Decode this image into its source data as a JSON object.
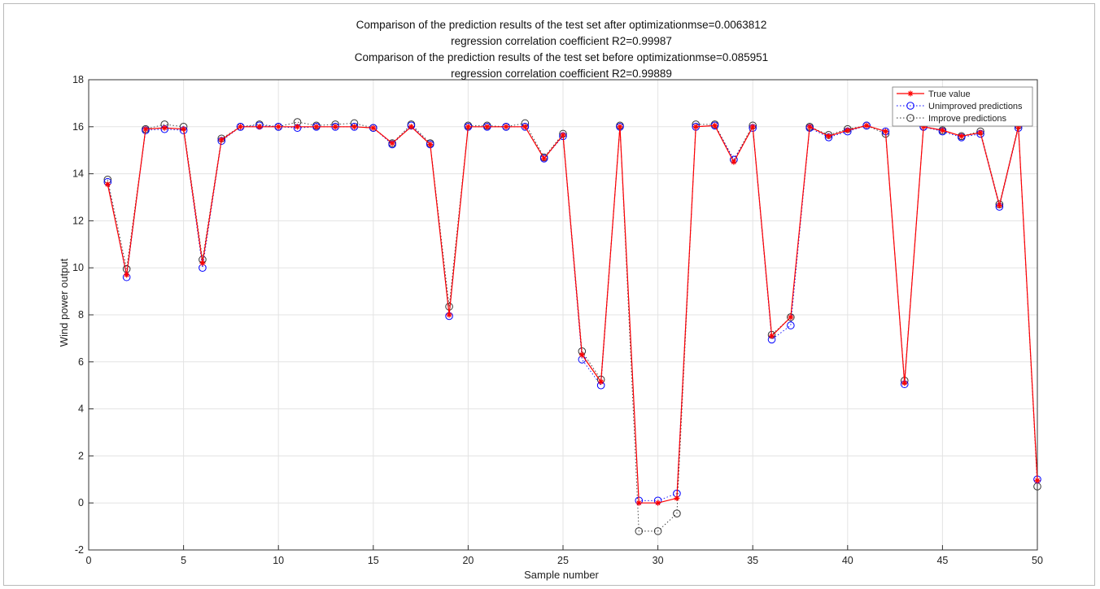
{
  "chart_data": {
    "type": "line",
    "title_lines": [
      "Comparison of the prediction results of the test set after optimizationmse=0.0063812",
      "regression correlation coefficient R2=0.99987",
      "Comparison of the prediction results of the test set before optimizationmse=0.085951",
      "regression correlation coefficient R2=0.99889"
    ],
    "xlabel": "Sample number",
    "ylabel": "Wind power output",
    "xlim": [
      0,
      50
    ],
    "ylim": [
      -2,
      18
    ],
    "xticks": [
      0,
      5,
      10,
      15,
      20,
      25,
      30,
      35,
      40,
      45,
      50
    ],
    "yticks": [
      -2,
      0,
      2,
      4,
      6,
      8,
      10,
      12,
      14,
      16,
      18
    ],
    "grid": true,
    "legend_position": "top-right",
    "x": [
      1,
      2,
      3,
      4,
      5,
      6,
      7,
      8,
      9,
      10,
      11,
      12,
      13,
      14,
      15,
      16,
      17,
      18,
      19,
      20,
      21,
      22,
      23,
      24,
      25,
      26,
      27,
      28,
      29,
      30,
      31,
      32,
      33,
      34,
      35,
      36,
      37,
      38,
      39,
      40,
      41,
      42,
      43,
      44,
      45,
      46,
      47,
      48,
      49,
      50
    ],
    "series": [
      {
        "name": "True value",
        "color": "#ff0000",
        "marker": "star",
        "line": "solid",
        "values": [
          13.55,
          9.7,
          15.9,
          15.95,
          15.9,
          10.2,
          15.45,
          16.0,
          16.0,
          16.0,
          16.0,
          16.0,
          16.0,
          16.0,
          15.95,
          15.3,
          16.0,
          15.25,
          8.0,
          16.0,
          16.0,
          16.0,
          16.0,
          14.65,
          15.65,
          6.3,
          5.15,
          16.0,
          0.0,
          0.0,
          0.2,
          16.0,
          16.05,
          14.5,
          16.0,
          7.1,
          7.9,
          16.0,
          15.6,
          15.85,
          16.05,
          15.8,
          5.1,
          16.0,
          15.85,
          15.6,
          15.75,
          12.65,
          16.0,
          0.95
        ]
      },
      {
        "name": "Unimproved predictions",
        "color": "#0000ff",
        "marker": "circle",
        "line": "dotted",
        "values": [
          13.65,
          9.6,
          15.85,
          15.9,
          15.85,
          10.0,
          15.4,
          16.0,
          16.05,
          16.0,
          15.95,
          16.0,
          16.0,
          16.0,
          15.95,
          15.25,
          16.05,
          15.25,
          7.95,
          16.0,
          16.0,
          16.0,
          16.0,
          14.65,
          15.6,
          6.1,
          5.0,
          16.0,
          0.1,
          0.1,
          0.4,
          16.0,
          16.05,
          14.6,
          15.95,
          6.95,
          7.55,
          15.95,
          15.55,
          15.8,
          16.05,
          15.8,
          5.05,
          16.0,
          15.8,
          15.55,
          15.7,
          12.6,
          15.95,
          1.0
        ]
      },
      {
        "name": "Improve predictions",
        "color": "#333333",
        "marker": "circle",
        "line": "dotted",
        "values": [
          13.75,
          9.95,
          15.9,
          16.1,
          16.0,
          10.35,
          15.5,
          16.0,
          16.1,
          16.0,
          16.2,
          16.05,
          16.1,
          16.15,
          15.95,
          15.3,
          16.1,
          15.3,
          8.35,
          16.05,
          16.05,
          16.0,
          16.15,
          14.7,
          15.7,
          6.45,
          5.25,
          16.05,
          -1.2,
          -1.2,
          -0.45,
          16.1,
          16.1,
          14.6,
          16.05,
          7.15,
          7.9,
          16.0,
          15.65,
          15.9,
          16.05,
          15.7,
          5.2,
          16.0,
          15.85,
          15.6,
          15.8,
          12.7,
          16.05,
          0.7
        ]
      }
    ]
  }
}
